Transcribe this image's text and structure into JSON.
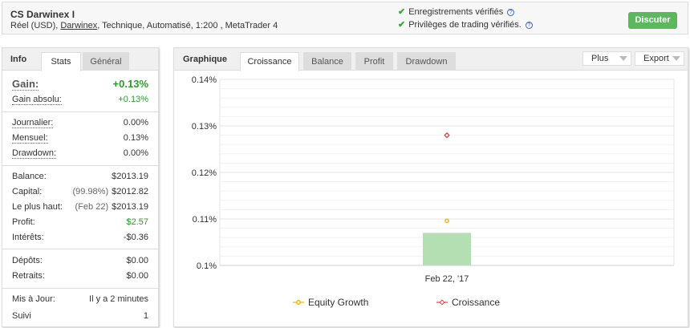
{
  "header": {
    "title": "CS Darwinex I",
    "subtitle_pre": "Réel (USD), ",
    "broker": "Darwinex",
    "subtitle_post": ", Technique, Automatisé, 1:200 , MetaTrader 4",
    "verifications": [
      "Enregistrements vérifiés",
      "Privilèges de trading vérifiés."
    ],
    "discuss_label": "Discuter"
  },
  "left": {
    "title": "Info",
    "tabs": [
      "Stats",
      "Général"
    ],
    "gain_label": "Gain:",
    "gain_value": "+0.13%",
    "rows": [
      {
        "k": "Gain absolu:",
        "v": "+0.13%",
        "color": "#2a9d2a"
      },
      {
        "k": "Journalier:",
        "v": "0.00%"
      },
      {
        "k": "Mensuel:",
        "v": "0.13%"
      },
      {
        "k": "Drawdown:",
        "v": "0.00%"
      },
      {
        "k": "Balance:",
        "v": "$2013.19"
      },
      {
        "k": "Capital:",
        "note": "(99.98%)",
        "v": "$2012.82"
      },
      {
        "k": "Le plus haut:",
        "note": "(Feb 22)",
        "v": "$2013.19"
      },
      {
        "k": "Profit:",
        "v": "$2.57",
        "color": "#2a9d2a"
      },
      {
        "k": "Intérêts:",
        "v": "-$0.36"
      },
      {
        "k": "Dépôts:",
        "v": "$0.00"
      },
      {
        "k": "Retraits:",
        "v": "$0.00"
      },
      {
        "k": "Mis à Jour:",
        "v": "Il y a 2 minutes"
      },
      {
        "k": "Suivi",
        "v": "1"
      }
    ]
  },
  "right": {
    "title": "Graphique",
    "tabs": [
      "Croissance",
      "Balance",
      "Profit",
      "Drawdown"
    ],
    "plus_label": "Plus",
    "export_label": "Export"
  },
  "chart_data": {
    "type": "bar",
    "categories": [
      "Feb 22, '17"
    ],
    "ylim": [
      0.1,
      0.14
    ],
    "yticks": [
      "0.1%",
      "0.11%",
      "0.12%",
      "0.13%",
      "0.14%"
    ],
    "grid": true,
    "legend_position": "bottom",
    "bar_values": [
      0.107
    ],
    "bar_color": "#b3dfb3",
    "series": [
      {
        "name": "Equity Growth",
        "type": "line",
        "values": [
          0.1096
        ],
        "color": "#f5b800"
      },
      {
        "name": "Croissance",
        "type": "line",
        "values": [
          0.128
        ],
        "color": "#e84040"
      }
    ]
  }
}
